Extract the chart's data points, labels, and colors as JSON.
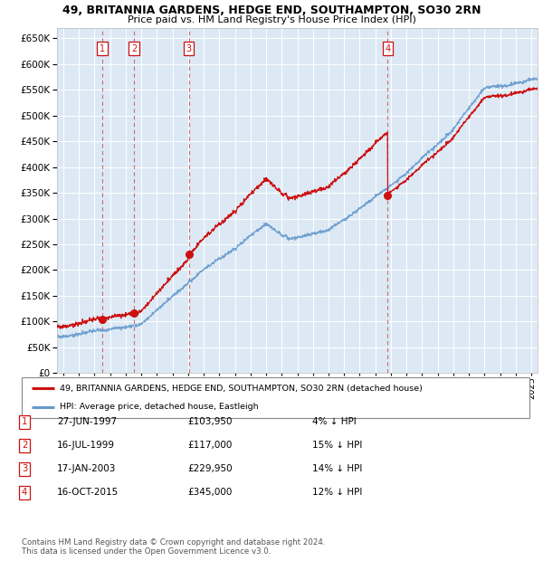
{
  "title": "49, BRITANNIA GARDENS, HEDGE END, SOUTHAMPTON, SO30 2RN",
  "subtitle": "Price paid vs. HM Land Registry's House Price Index (HPI)",
  "plot_bg_color": "#dce9f5",
  "hpi_line_color": "#6699cc",
  "price_line_color": "#cc1111",
  "ylim": [
    0,
    670000
  ],
  "yticks": [
    0,
    50000,
    100000,
    150000,
    200000,
    250000,
    300000,
    350000,
    400000,
    450000,
    500000,
    550000,
    600000,
    650000
  ],
  "xlim_start": 1994.6,
  "xlim_end": 2025.4,
  "sales": [
    {
      "num": 1,
      "date": "27-JUN-1997",
      "year": 1997.49,
      "price": 103950
    },
    {
      "num": 2,
      "date": "16-JUL-1999",
      "year": 1999.54,
      "price": 117000
    },
    {
      "num": 3,
      "date": "17-JAN-2003",
      "year": 2003.04,
      "price": 229950
    },
    {
      "num": 4,
      "date": "16-OCT-2015",
      "year": 2015.79,
      "price": 345000
    }
  ],
  "legend_label_red": "49, BRITANNIA GARDENS, HEDGE END, SOUTHAMPTON, SO30 2RN (detached house)",
  "legend_label_blue": "HPI: Average price, detached house, Eastleigh",
  "footer1": "Contains HM Land Registry data © Crown copyright and database right 2024.",
  "footer2": "This data is licensed under the Open Government Licence v3.0.",
  "table_rows": [
    {
      "num": 1,
      "date": "27-JUN-1997",
      "price": "£103,950",
      "pct": "4% ↓ HPI"
    },
    {
      "num": 2,
      "date": "16-JUL-1999",
      "price": "£117,000",
      "pct": "15% ↓ HPI"
    },
    {
      "num": 3,
      "date": "17-JAN-2003",
      "price": "£229,950",
      "pct": "14% ↓ HPI"
    },
    {
      "num": 4,
      "date": "16-OCT-2015",
      "price": "£345,000",
      "pct": "12% ↓ HPI"
    }
  ]
}
